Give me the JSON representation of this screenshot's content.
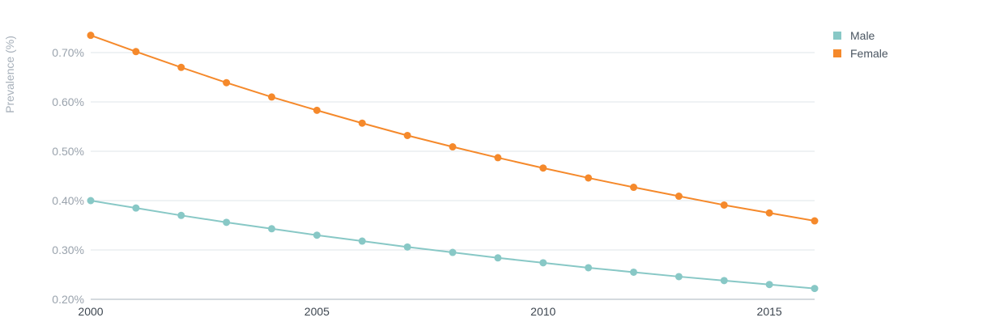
{
  "chart_data": {
    "type": "line",
    "x": [
      2000,
      2001,
      2002,
      2003,
      2004,
      2005,
      2006,
      2007,
      2008,
      2009,
      2010,
      2011,
      2012,
      2013,
      2014,
      2015,
      2016
    ],
    "series": [
      {
        "name": "Male",
        "color": "#88c8c6",
        "values": [
          0.4,
          0.385,
          0.37,
          0.356,
          0.343,
          0.33,
          0.318,
          0.306,
          0.295,
          0.284,
          0.274,
          0.264,
          0.255,
          0.246,
          0.238,
          0.23,
          0.222
        ]
      },
      {
        "name": "Female",
        "color": "#f5892b",
        "values": [
          0.735,
          0.702,
          0.67,
          0.639,
          0.61,
          0.583,
          0.557,
          0.532,
          0.509,
          0.487,
          0.466,
          0.446,
          0.427,
          0.409,
          0.391,
          0.375,
          0.359
        ]
      }
    ],
    "ylabel": "Prevalence (%)",
    "xlabel": "",
    "ylim": [
      0.2,
      0.7
    ],
    "xlim": [
      2000,
      2016
    ],
    "yticks": [
      0.2,
      0.3,
      0.4,
      0.5,
      0.6,
      0.7
    ],
    "ytick_labels": [
      "0.20%",
      "0.30%",
      "0.40%",
      "0.50%",
      "0.60%",
      "0.70%"
    ],
    "xticks": [
      2000,
      2005,
      2010,
      2015
    ],
    "xtick_labels": [
      "2000",
      "2005",
      "2010",
      "2015"
    ],
    "grid": true,
    "legend_position": "top-right"
  }
}
